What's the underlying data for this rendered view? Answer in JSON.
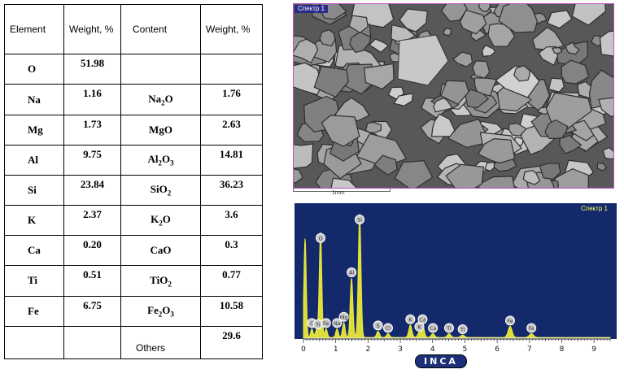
{
  "table": {
    "headers": {
      "element": "Element",
      "weight1": "Weight, %",
      "content": "Content",
      "weight2": "Weight, %"
    },
    "rows": [
      {
        "element": "O",
        "weight": "51.98",
        "content_base": "",
        "content_sub": "",
        "content_tail": "",
        "content_weight": ""
      },
      {
        "element": "Na",
        "weight": "1.16",
        "content_base": "Na",
        "content_sub": "2",
        "content_tail": "O",
        "content_weight": "1.76"
      },
      {
        "element": "Mg",
        "weight": "1.73",
        "content_base": "MgO",
        "content_sub": "",
        "content_tail": "",
        "content_weight": "2.63"
      },
      {
        "element": "Al",
        "weight": "9.75",
        "content_base": "Al",
        "content_sub": "2",
        "content_tail": "O",
        "content_sub2": "3",
        "content_weight": "14.81"
      },
      {
        "element": "Si",
        "weight": "23.84",
        "content_base": "SiO",
        "content_sub": "2",
        "content_tail": "",
        "content_weight": "36.23"
      },
      {
        "element": "K",
        "weight": "2.37",
        "content_base": "K",
        "content_sub": "2",
        "content_tail": "O",
        "content_weight": "3.6"
      },
      {
        "element": "Ca",
        "weight": "0.20",
        "content_base": "CaO",
        "content_sub": "",
        "content_tail": "",
        "content_weight": "0.3"
      },
      {
        "element": "Ti",
        "weight": "0.51",
        "content_base": "TiO",
        "content_sub": "2",
        "content_tail": "",
        "content_weight": "0.77"
      },
      {
        "element": "Fe",
        "weight": "6.75",
        "content_base": "Fe",
        "content_sub": "2",
        "content_tail": "O",
        "content_sub2": "3",
        "content_weight": "10.58"
      }
    ],
    "others_label": "Others",
    "others_weight": "29.6"
  },
  "sem": {
    "label": "Спектр 1",
    "scale_label": "1mm"
  },
  "chart_data": {
    "type": "bar",
    "title": "",
    "legend_label": "Спектр 1",
    "logo": "INCA",
    "x_ticks": [
      "0",
      "1",
      "2",
      "3",
      "4",
      "5",
      "6",
      "7",
      "8",
      "9"
    ],
    "xlim": [
      0,
      9.5
    ],
    "ylim": [
      0,
      1
    ],
    "peaks": [
      {
        "x": 0.05,
        "h": 0.8,
        "labels": []
      },
      {
        "x": 0.26,
        "h": 0.07,
        "labels": [
          "C"
        ]
      },
      {
        "x": 0.39,
        "h": 0.04,
        "labels": []
      },
      {
        "x": 0.45,
        "h": 0.06,
        "labels": [
          "Ti"
        ]
      },
      {
        "x": 0.53,
        "h": 0.85,
        "labels": [
          "O"
        ]
      },
      {
        "x": 0.7,
        "h": 0.07,
        "labels": [
          "Fe"
        ]
      },
      {
        "x": 1.04,
        "h": 0.07,
        "labels": [
          "Na"
        ]
      },
      {
        "x": 1.25,
        "h": 0.12,
        "labels": [
          "Mg"
        ]
      },
      {
        "x": 1.49,
        "h": 0.48,
        "labels": [
          "Al"
        ]
      },
      {
        "x": 1.74,
        "h": 1.0,
        "labels": [
          "Si"
        ]
      },
      {
        "x": 2.31,
        "h": 0.05,
        "labels": [
          "S"
        ]
      },
      {
        "x": 2.62,
        "h": 0.03,
        "labels": [
          "Cl"
        ]
      },
      {
        "x": 3.31,
        "h": 0.1,
        "labels": [
          "K"
        ]
      },
      {
        "x": 3.59,
        "h": 0.04,
        "labels": [
          "K"
        ]
      },
      {
        "x": 3.69,
        "h": 0.1,
        "labels": [
          "Ca"
        ]
      },
      {
        "x": 4.01,
        "h": 0.03,
        "labels": [
          "Ca"
        ]
      },
      {
        "x": 4.51,
        "h": 0.03,
        "labels": [
          "Ti"
        ]
      },
      {
        "x": 4.93,
        "h": 0.02,
        "labels": [
          "Ti"
        ]
      },
      {
        "x": 6.4,
        "h": 0.09,
        "labels": [
          "Fe"
        ]
      },
      {
        "x": 7.06,
        "h": 0.03,
        "labels": [
          "Fe"
        ]
      }
    ],
    "colors": {
      "background": "#13296b",
      "spectrum": "#e8e83a",
      "axis": "#f2f2f2"
    }
  }
}
